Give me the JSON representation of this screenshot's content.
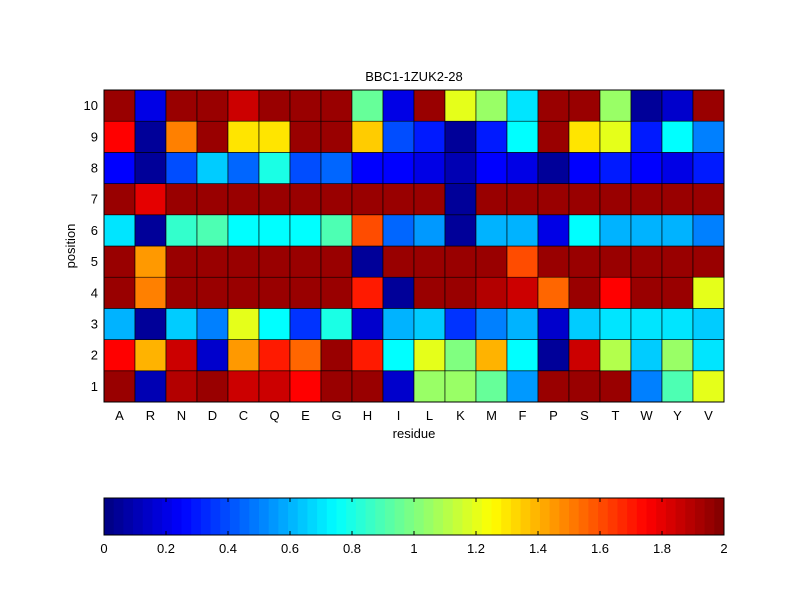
{
  "chart_data": {
    "type": "heatmap",
    "title": "BBC1-1ZUK2-28",
    "xlabel": "residue",
    "ylabel": "position",
    "x_categories": [
      "A",
      "R",
      "N",
      "D",
      "C",
      "Q",
      "E",
      "G",
      "H",
      "I",
      "L",
      "K",
      "M",
      "F",
      "P",
      "S",
      "T",
      "W",
      "Y",
      "V"
    ],
    "y_categories": [
      "1",
      "2",
      "3",
      "4",
      "5",
      "6",
      "7",
      "8",
      "9",
      "10"
    ],
    "values": [
      [
        1.95,
        0.1,
        1.9,
        1.95,
        1.85,
        1.85,
        1.75,
        1.95,
        1.95,
        0.15,
        1.05,
        1.05,
        0.95,
        0.55,
        1.95,
        1.95,
        1.95,
        0.5,
        0.9,
        1.2
      ],
      [
        1.75,
        1.4,
        1.85,
        0.15,
        1.45,
        1.7,
        1.55,
        1.95,
        1.7,
        0.75,
        1.2,
        1.0,
        1.4,
        0.75,
        0.05,
        1.85,
        1.1,
        0.65,
        1.05,
        0.7
      ],
      [
        0.6,
        0.05,
        0.65,
        0.5,
        1.2,
        0.75,
        0.35,
        0.8,
        0.15,
        0.6,
        0.65,
        0.35,
        0.5,
        0.6,
        0.15,
        0.65,
        0.7,
        0.7,
        0.7,
        0.65
      ],
      [
        1.95,
        1.5,
        1.95,
        1.95,
        1.95,
        1.95,
        1.95,
        1.95,
        1.7,
        0.05,
        1.95,
        1.95,
        1.9,
        1.85,
        1.55,
        1.95,
        1.75,
        1.95,
        1.95,
        1.2
      ],
      [
        1.95,
        1.45,
        1.95,
        1.95,
        1.95,
        1.95,
        1.95,
        1.95,
        0.05,
        1.95,
        1.95,
        1.95,
        1.95,
        1.6,
        1.95,
        1.95,
        1.95,
        1.95,
        1.95,
        1.95
      ],
      [
        0.7,
        0.05,
        0.85,
        0.9,
        0.75,
        0.75,
        0.75,
        0.9,
        1.6,
        0.45,
        0.55,
        0.05,
        0.6,
        0.6,
        0.2,
        0.75,
        0.6,
        0.6,
        0.6,
        0.5
      ],
      [
        1.95,
        1.8,
        1.95,
        1.95,
        1.95,
        1.95,
        1.95,
        1.95,
        1.95,
        1.95,
        1.95,
        0.05,
        1.95,
        1.95,
        1.95,
        1.95,
        1.95,
        1.95,
        1.95,
        1.95
      ],
      [
        0.25,
        0.05,
        0.4,
        0.65,
        0.45,
        0.8,
        0.4,
        0.45,
        0.25,
        0.25,
        0.2,
        0.1,
        0.25,
        0.2,
        0.05,
        0.25,
        0.3,
        0.25,
        0.2,
        0.3
      ],
      [
        1.75,
        0.05,
        1.5,
        1.95,
        1.3,
        1.3,
        1.95,
        1.95,
        1.35,
        0.4,
        0.3,
        0.05,
        0.3,
        0.75,
        1.95,
        1.3,
        1.2,
        0.3,
        0.75,
        0.5
      ],
      [
        1.95,
        0.2,
        1.95,
        1.95,
        1.85,
        1.95,
        1.95,
        1.95,
        0.95,
        0.2,
        1.95,
        1.2,
        1.05,
        0.7,
        1.95,
        1.95,
        1.05,
        0.05,
        0.15,
        1.95
      ]
    ],
    "colorbar": {
      "colormap": "jet",
      "range": [
        0,
        2
      ],
      "ticks": [
        "0",
        "0.2",
        "0.4",
        "0.6",
        "0.8",
        "1",
        "1.2",
        "1.4",
        "1.6",
        "1.8",
        "2"
      ]
    },
    "grid": true
  }
}
